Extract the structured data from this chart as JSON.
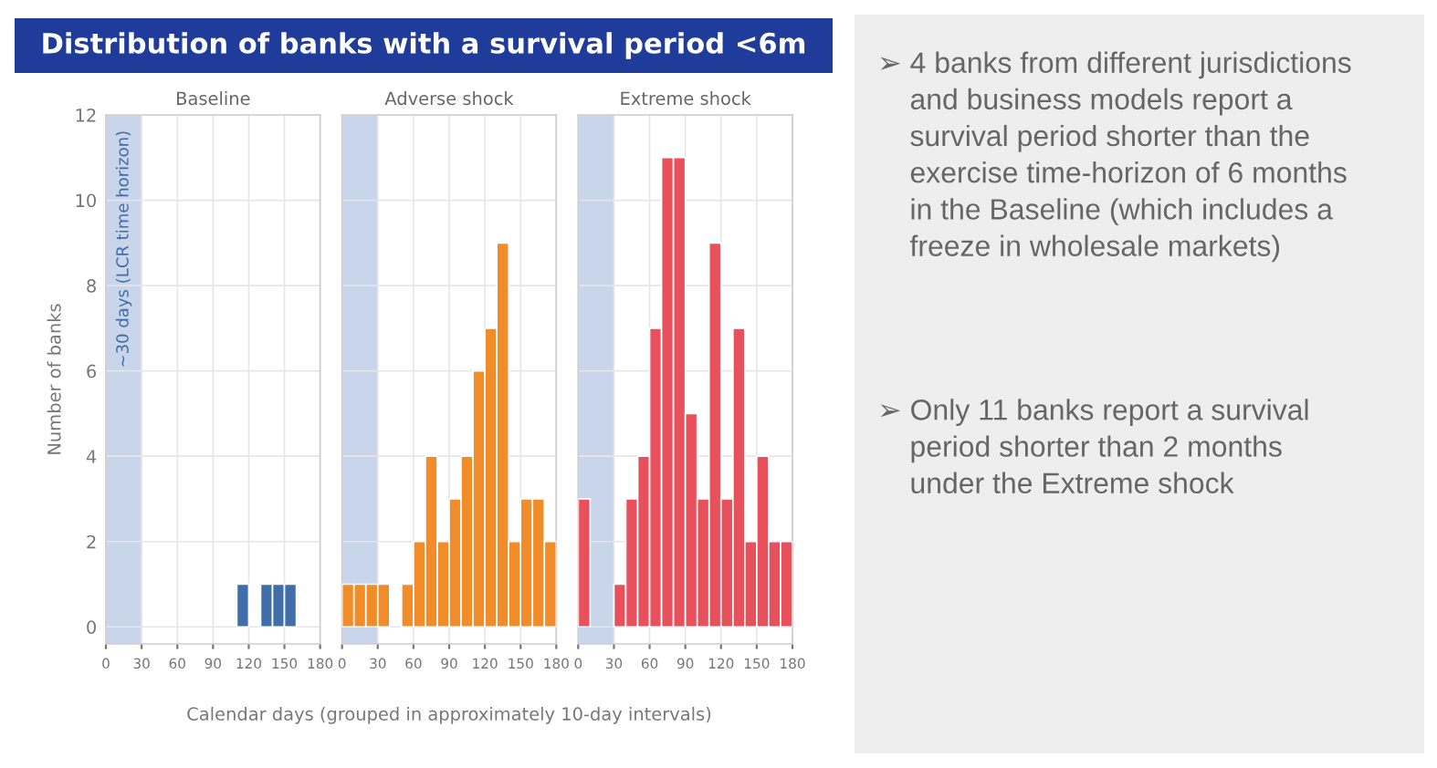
{
  "chart_data": [
    {
      "type": "histogram",
      "title": "Distribution of banks with a survival period <6m",
      "subtitle": "Baseline",
      "ylabel": "Number of banks",
      "bins": [
        0,
        10,
        20,
        30,
        40,
        50,
        60,
        70,
        80,
        90,
        100,
        110,
        120,
        130,
        140,
        150,
        160,
        170,
        180
      ],
      "values": [
        0,
        0,
        0,
        0,
        0,
        0,
        0,
        0,
        0,
        0,
        0,
        1,
        0,
        1,
        1,
        1,
        0,
        0
      ],
      "color": "#3f6ea8",
      "xlim": [
        0,
        180
      ],
      "ylim": [
        -0.4,
        12
      ],
      "xticks": [
        0,
        30,
        60,
        90,
        120,
        150,
        180
      ],
      "yticks": [
        0,
        2,
        4,
        6,
        8,
        10,
        12
      ],
      "grid": true,
      "bands": [
        {
          "axis": "x",
          "from": 0,
          "to": 30,
          "label": "~30 days (LCR time horizon)",
          "color": "#c9d5ea"
        }
      ]
    },
    {
      "type": "histogram",
      "subtitle": "Adverse shock",
      "xlabel": "Calendar days (grouped in approximately 10-day intervals)",
      "bins": [
        0,
        10,
        20,
        30,
        40,
        50,
        60,
        70,
        80,
        90,
        100,
        110,
        120,
        130,
        140,
        150,
        160,
        170,
        180
      ],
      "values": [
        1,
        1,
        1,
        1,
        0,
        1,
        2,
        4,
        2,
        3,
        4,
        6,
        7,
        9,
        2,
        3,
        3,
        2
      ],
      "color": "#f28c28",
      "xlim": [
        0,
        180
      ],
      "ylim": [
        -0.4,
        12
      ],
      "xticks": [
        0,
        30,
        60,
        90,
        120,
        150,
        180
      ],
      "yticks": [
        0,
        2,
        4,
        6,
        8,
        10,
        12
      ],
      "grid": true,
      "tick_labels": "x",
      "bands": [
        {
          "axis": "x",
          "from": 0,
          "to": 30,
          "color": "#c9d5ea"
        }
      ]
    },
    {
      "type": "histogram",
      "subtitle": "Extreme shock",
      "bins": [
        0,
        10,
        20,
        30,
        40,
        50,
        60,
        70,
        80,
        90,
        100,
        110,
        120,
        130,
        140,
        150,
        160,
        170,
        180
      ],
      "values": [
        3,
        0,
        0,
        1,
        3,
        4,
        7,
        11,
        11,
        5,
        3,
        9,
        3,
        7,
        2,
        4,
        2,
        2
      ],
      "color": "#e8505b",
      "xlim": [
        0,
        180
      ],
      "ylim": [
        -0.4,
        12
      ],
      "xticks": [
        0,
        30,
        60,
        90,
        120,
        150,
        180
      ],
      "yticks": [
        0,
        2,
        4,
        6,
        8,
        10,
        12
      ],
      "grid": true,
      "tick_labels": "x",
      "bands": [
        {
          "axis": "x",
          "from": 0,
          "to": 30,
          "color": "#c9d5ea"
        }
      ]
    },
    {
      "type": "other",
      "annotations": [
        "➢ 4 banks from different jurisdictions\n    and business models report a\n    survival period shorter than the\n    exercise time-horizon of 6 months\n    in the Baseline (which includes a\n    freeze in wholesale markets)",
        "➢ Only 11 banks report a survival\n    period shorter than 2 months\n    under the Extreme shock"
      ]
    }
  ]
}
